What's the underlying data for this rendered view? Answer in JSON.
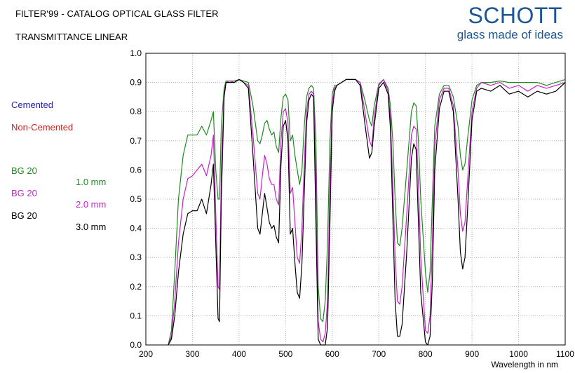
{
  "header": {
    "title": "FILTER'99 - CATALOG OPTICAL GLASS FILTER",
    "subtitle": "TRANSMITTANCE LINEAR"
  },
  "logo": {
    "name": "SCHOTT",
    "tagline": "glass made of ideas"
  },
  "legend": {
    "cemented": "Cemented",
    "non_cemented": "Non-Cemented",
    "glasses": [
      {
        "name": "BG 20",
        "thickness": "1.0 mm",
        "color": "#1f8a1f"
      },
      {
        "name": "BG 20",
        "thickness": "2.0 mm",
        "color": "#c81fc8"
      },
      {
        "name": "BG 20",
        "thickness": "3.0 mm",
        "color": "#000000"
      }
    ],
    "cemented_color": "#2222aa",
    "non_cemented_color": "#cc2222"
  },
  "chart_data": {
    "type": "line",
    "title": "TRANSMITTANCE LINEAR",
    "xlabel": "Wavelength in nm",
    "ylabel": "",
    "xlim": [
      200,
      1100
    ],
    "ylim": [
      0,
      1
    ],
    "xticks": [
      "200",
      "300",
      "400",
      "500",
      "600",
      "700",
      "800",
      "900",
      "1000",
      "1100"
    ],
    "yticks": [
      "0.0",
      "0.1",
      "0.2",
      "0.3",
      "0.4",
      "0.5",
      "0.6",
      "0.7",
      "0.8",
      "0.9",
      "1.0"
    ],
    "grid": true,
    "series": [
      {
        "name": "BG 20 1.0 mm",
        "color": "#1f8a1f",
        "x": [
          248,
          255,
          262,
          270,
          280,
          290,
          300,
          310,
          320,
          330,
          340,
          345,
          350,
          355,
          358,
          362,
          368,
          372,
          380,
          390,
          400,
          410,
          420,
          430,
          440,
          445,
          450,
          455,
          460,
          465,
          470,
          475,
          480,
          485,
          490,
          495,
          500,
          505,
          510,
          515,
          520,
          525,
          530,
          535,
          540,
          545,
          550,
          555,
          560,
          565,
          570,
          575,
          580,
          585,
          590,
          595,
          600,
          605,
          610,
          620,
          630,
          640,
          650,
          660,
          670,
          680,
          685,
          690,
          700,
          710,
          720,
          725,
          730,
          735,
          740,
          745,
          750,
          760,
          770,
          775,
          780,
          785,
          790,
          800,
          805,
          810,
          815,
          820,
          830,
          840,
          850,
          860,
          870,
          875,
          880,
          885,
          890,
          900,
          910,
          920,
          940,
          960,
          980,
          1000,
          1020,
          1040,
          1060,
          1080,
          1100
        ],
        "y": [
          0.0,
          0.05,
          0.25,
          0.5,
          0.65,
          0.72,
          0.72,
          0.72,
          0.75,
          0.72,
          0.77,
          0.8,
          0.6,
          0.5,
          0.5,
          0.75,
          0.88,
          0.905,
          0.905,
          0.905,
          0.91,
          0.905,
          0.9,
          0.82,
          0.7,
          0.69,
          0.72,
          0.76,
          0.77,
          0.74,
          0.72,
          0.73,
          0.68,
          0.66,
          0.78,
          0.85,
          0.86,
          0.84,
          0.7,
          0.72,
          0.65,
          0.6,
          0.55,
          0.6,
          0.75,
          0.85,
          0.88,
          0.89,
          0.88,
          0.7,
          0.2,
          0.09,
          0.08,
          0.15,
          0.35,
          0.7,
          0.86,
          0.89,
          0.89,
          0.9,
          0.91,
          0.91,
          0.91,
          0.9,
          0.84,
          0.77,
          0.75,
          0.82,
          0.895,
          0.91,
          0.88,
          0.82,
          0.7,
          0.5,
          0.35,
          0.34,
          0.4,
          0.6,
          0.8,
          0.83,
          0.82,
          0.7,
          0.5,
          0.25,
          0.18,
          0.25,
          0.5,
          0.75,
          0.86,
          0.89,
          0.89,
          0.85,
          0.75,
          0.65,
          0.6,
          0.62,
          0.7,
          0.84,
          0.89,
          0.9,
          0.9,
          0.905,
          0.9,
          0.9,
          0.9,
          0.9,
          0.89,
          0.9,
          0.91
        ]
      },
      {
        "name": "BG 20 2.0 mm",
        "color": "#c81fc8",
        "x": [
          248,
          255,
          262,
          270,
          280,
          290,
          300,
          310,
          320,
          330,
          340,
          345,
          350,
          355,
          358,
          362,
          368,
          372,
          380,
          390,
          400,
          410,
          420,
          430,
          440,
          445,
          450,
          455,
          460,
          465,
          470,
          475,
          480,
          485,
          490,
          495,
          500,
          505,
          510,
          515,
          520,
          525,
          530,
          535,
          540,
          545,
          550,
          555,
          560,
          565,
          570,
          575,
          580,
          585,
          590,
          595,
          600,
          605,
          610,
          620,
          630,
          640,
          650,
          660,
          670,
          680,
          685,
          690,
          700,
          710,
          720,
          725,
          730,
          735,
          740,
          745,
          750,
          760,
          770,
          775,
          780,
          785,
          790,
          800,
          805,
          810,
          815,
          820,
          830,
          840,
          850,
          860,
          870,
          875,
          880,
          885,
          890,
          900,
          910,
          920,
          940,
          960,
          980,
          1000,
          1020,
          1040,
          1060,
          1080,
          1100
        ],
        "y": [
          0.0,
          0.03,
          0.15,
          0.35,
          0.5,
          0.57,
          0.58,
          0.6,
          0.62,
          0.58,
          0.65,
          0.72,
          0.45,
          0.2,
          0.19,
          0.6,
          0.86,
          0.9,
          0.905,
          0.9,
          0.91,
          0.9,
          0.89,
          0.72,
          0.52,
          0.5,
          0.58,
          0.65,
          0.62,
          0.57,
          0.55,
          0.55,
          0.5,
          0.48,
          0.7,
          0.8,
          0.81,
          0.76,
          0.52,
          0.54,
          0.42,
          0.3,
          0.28,
          0.4,
          0.62,
          0.8,
          0.86,
          0.87,
          0.86,
          0.55,
          0.08,
          0.02,
          0.01,
          0.04,
          0.15,
          0.55,
          0.83,
          0.88,
          0.89,
          0.9,
          0.91,
          0.91,
          0.91,
          0.9,
          0.8,
          0.7,
          0.68,
          0.78,
          0.89,
          0.91,
          0.87,
          0.78,
          0.55,
          0.3,
          0.15,
          0.14,
          0.2,
          0.45,
          0.72,
          0.75,
          0.74,
          0.55,
          0.3,
          0.05,
          0.04,
          0.1,
          0.35,
          0.68,
          0.84,
          0.88,
          0.88,
          0.82,
          0.6,
          0.45,
          0.39,
          0.42,
          0.55,
          0.8,
          0.88,
          0.9,
          0.89,
          0.9,
          0.88,
          0.89,
          0.87,
          0.89,
          0.88,
          0.89,
          0.9
        ]
      },
      {
        "name": "BG 20 3.0 mm",
        "color": "#000000",
        "x": [
          248,
          255,
          262,
          270,
          280,
          290,
          300,
          310,
          320,
          330,
          340,
          345,
          350,
          355,
          358,
          362,
          368,
          372,
          380,
          390,
          400,
          410,
          420,
          430,
          440,
          445,
          450,
          455,
          460,
          465,
          470,
          475,
          480,
          485,
          490,
          495,
          500,
          505,
          510,
          515,
          520,
          525,
          530,
          535,
          540,
          545,
          550,
          555,
          560,
          565,
          570,
          575,
          580,
          585,
          590,
          595,
          600,
          605,
          610,
          620,
          630,
          640,
          650,
          660,
          670,
          680,
          685,
          690,
          700,
          710,
          720,
          725,
          730,
          735,
          740,
          745,
          750,
          760,
          770,
          775,
          780,
          785,
          790,
          800,
          805,
          810,
          815,
          820,
          830,
          840,
          850,
          860,
          870,
          875,
          880,
          885,
          890,
          900,
          910,
          920,
          940,
          960,
          980,
          1000,
          1020,
          1040,
          1060,
          1080,
          1100
        ],
        "y": [
          0.0,
          0.02,
          0.1,
          0.25,
          0.38,
          0.45,
          0.46,
          0.46,
          0.5,
          0.45,
          0.55,
          0.62,
          0.35,
          0.09,
          0.08,
          0.5,
          0.85,
          0.9,
          0.9,
          0.9,
          0.91,
          0.9,
          0.88,
          0.65,
          0.4,
          0.38,
          0.45,
          0.52,
          0.47,
          0.42,
          0.4,
          0.41,
          0.37,
          0.35,
          0.62,
          0.75,
          0.77,
          0.7,
          0.38,
          0.4,
          0.28,
          0.18,
          0.16,
          0.28,
          0.52,
          0.76,
          0.84,
          0.86,
          0.85,
          0.42,
          0.02,
          0.0,
          0.0,
          0.0,
          0.06,
          0.42,
          0.8,
          0.87,
          0.89,
          0.9,
          0.91,
          0.91,
          0.91,
          0.89,
          0.76,
          0.64,
          0.66,
          0.75,
          0.88,
          0.9,
          0.86,
          0.74,
          0.44,
          0.15,
          0.03,
          0.03,
          0.07,
          0.32,
          0.64,
          0.69,
          0.67,
          0.42,
          0.18,
          0.01,
          0.0,
          0.03,
          0.22,
          0.6,
          0.81,
          0.87,
          0.87,
          0.8,
          0.5,
          0.32,
          0.26,
          0.3,
          0.45,
          0.77,
          0.87,
          0.88,
          0.87,
          0.89,
          0.86,
          0.87,
          0.85,
          0.87,
          0.86,
          0.87,
          0.9
        ]
      }
    ]
  }
}
